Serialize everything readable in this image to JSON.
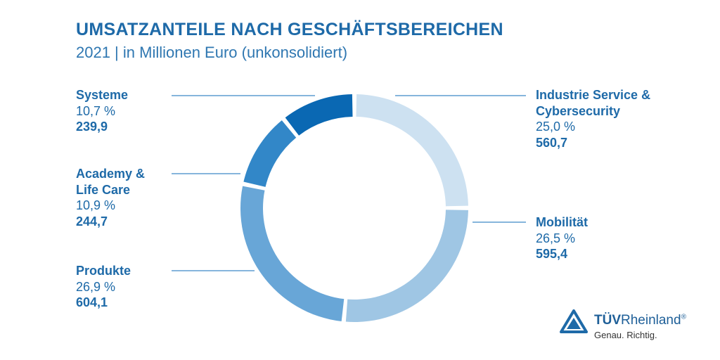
{
  "chart_data": {
    "type": "pie",
    "title": "UMSATZANTEILE NACH GESCHÄFTSBEREICHEN",
    "subtitle": "2021 | in Millionen Euro (unkonsolidiert)",
    "slices": [
      {
        "name": "Industrie Service & Cybersecurity",
        "name_lines": [
          "Industrie Service &",
          "Cybersecurity"
        ],
        "percent_label": "25,0 %",
        "value_label": "560,7",
        "value": 560.7,
        "color": "#cde1f1"
      },
      {
        "name": "Mobilität",
        "name_lines": [
          "Mobilität"
        ],
        "percent_label": "26,5 %",
        "value_label": "595,4",
        "value": 595.4,
        "color": "#9fc6e4"
      },
      {
        "name": "Produkte",
        "name_lines": [
          "Produkte"
        ],
        "percent_label": "26,9 %",
        "value_label": "604,1",
        "value": 604.1,
        "color": "#68a6d7"
      },
      {
        "name": "Academy & Life Care",
        "name_lines": [
          "Academy &",
          "Life Care"
        ],
        "percent_label": "10,9 %",
        "value_label": "244,7",
        "value": 244.7,
        "color": "#3287c8"
      },
      {
        "name": "Systeme",
        "name_lines": [
          "Systeme"
        ],
        "percent_label": "10,7 %",
        "value_label": "239,9",
        "value": 239.9,
        "color": "#0a68b3"
      }
    ],
    "start": "12 o'clock",
    "direction": "clockwise",
    "legend": "none"
  },
  "logo": {
    "brand_bold": "TÜV",
    "brand_rest": "Rheinland",
    "registered": "®",
    "tagline": "Genau. Richtig."
  },
  "colors": {
    "text": "#1e6aa8",
    "leader": "#3d89c6"
  }
}
